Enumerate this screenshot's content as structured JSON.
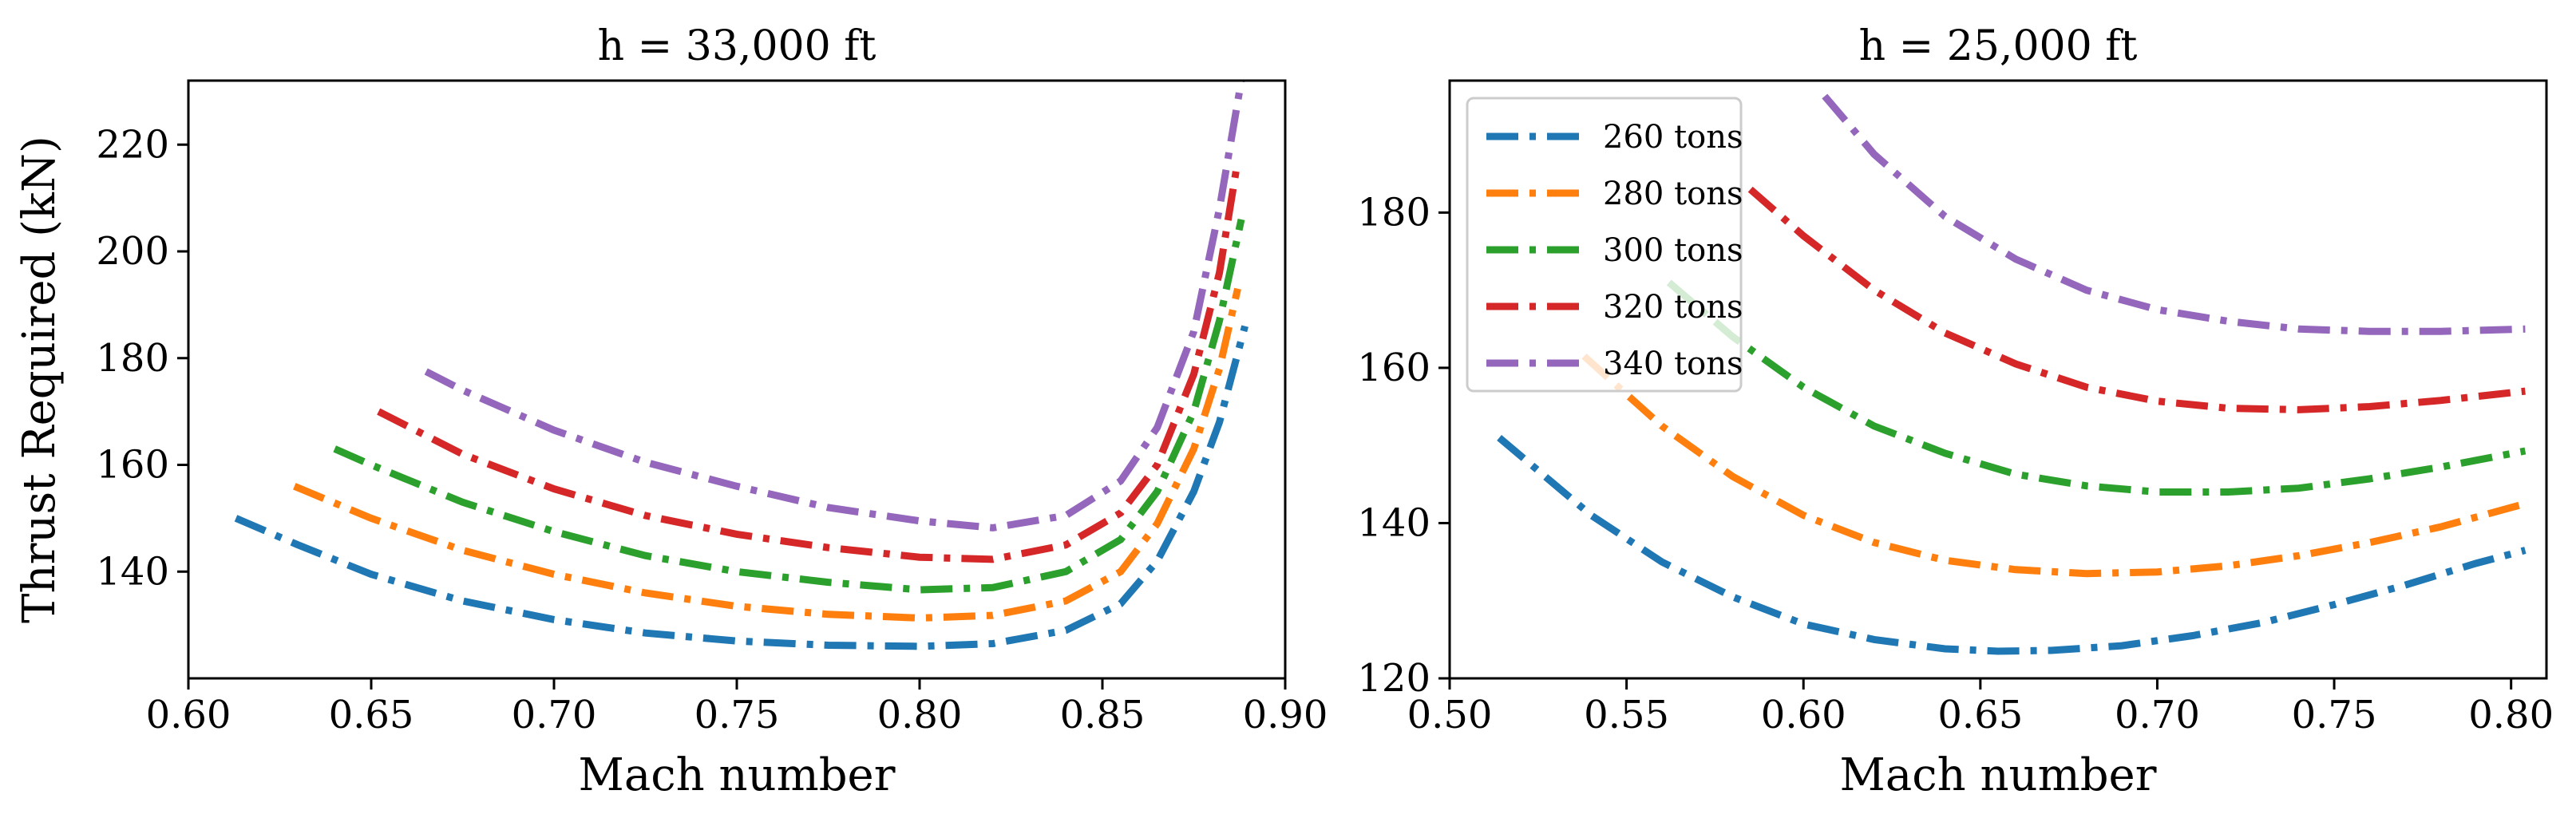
{
  "chart_data": [
    {
      "type": "line",
      "title": "h = 33,000 ft",
      "xlabel": "Mach number",
      "ylabel": "Thrust Required (kN)",
      "xlim": [
        0.6,
        0.9
      ],
      "ylim": [
        120,
        232
      ],
      "xticks": [
        0.6,
        0.65,
        0.7,
        0.75,
        0.8,
        0.85,
        0.9
      ],
      "xtick_labels": [
        "0.60",
        "0.65",
        "0.70",
        "0.75",
        "0.80",
        "0.85",
        "0.90"
      ],
      "yticks": [
        140,
        160,
        180,
        200,
        220
      ],
      "ytick_labels": [
        "140",
        "160",
        "180",
        "200",
        "220"
      ],
      "legend": null,
      "series": [
        {
          "name": "260 tons",
          "color": "#1f77b4",
          "x": [
            0.613,
            0.63,
            0.65,
            0.675,
            0.7,
            0.725,
            0.75,
            0.775,
            0.8,
            0.82,
            0.84,
            0.855,
            0.865,
            0.875,
            0.882,
            0.889
          ],
          "y": [
            150,
            145,
            139.5,
            134.5,
            131,
            128.5,
            127,
            126.2,
            126,
            126.5,
            129,
            134,
            142,
            155,
            168,
            186
          ]
        },
        {
          "name": "280 tons",
          "color": "#ff7f0e",
          "x": [
            0.629,
            0.65,
            0.675,
            0.7,
            0.725,
            0.75,
            0.775,
            0.8,
            0.82,
            0.84,
            0.855,
            0.865,
            0.875,
            0.882,
            0.887
          ],
          "y": [
            156,
            150,
            144,
            139.5,
            136,
            133.5,
            132,
            131.3,
            131.8,
            134.5,
            140,
            149,
            163,
            178,
            193
          ]
        },
        {
          "name": "300 tons",
          "color": "#2ca02c",
          "x": [
            0.64,
            0.65,
            0.675,
            0.7,
            0.725,
            0.75,
            0.775,
            0.8,
            0.82,
            0.84,
            0.855,
            0.865,
            0.875,
            0.882,
            0.888
          ],
          "y": [
            163,
            160,
            153,
            147.5,
            143,
            140,
            138,
            136.6,
            137,
            140,
            146,
            155,
            170,
            187,
            206
          ]
        },
        {
          "name": "320 tons",
          "color": "#d62728",
          "x": [
            0.652,
            0.675,
            0.7,
            0.725,
            0.75,
            0.775,
            0.8,
            0.82,
            0.84,
            0.855,
            0.865,
            0.875,
            0.882,
            0.887
          ],
          "y": [
            170,
            162,
            155.5,
            150.5,
            147,
            144.5,
            142.7,
            142.3,
            145,
            151,
            160,
            177,
            196,
            217
          ]
        },
        {
          "name": "340 tons",
          "color": "#9467bd",
          "x": [
            0.665,
            0.675,
            0.7,
            0.725,
            0.75,
            0.775,
            0.8,
            0.82,
            0.84,
            0.855,
            0.865,
            0.875,
            0.882,
            0.888
          ],
          "y": [
            177.5,
            174,
            166.5,
            160.5,
            156,
            152,
            149.5,
            148.2,
            150.5,
            157,
            167,
            185,
            208,
            232
          ]
        }
      ]
    },
    {
      "type": "line",
      "title": "h = 25,000 ft",
      "xlabel": "Mach number",
      "ylabel": "",
      "xlim": [
        0.5,
        0.81
      ],
      "ylim": [
        120,
        197
      ],
      "xticks": [
        0.5,
        0.55,
        0.6,
        0.65,
        0.7,
        0.75,
        0.8
      ],
      "xtick_labels": [
        "0.50",
        "0.55",
        "0.60",
        "0.65",
        "0.70",
        "0.75",
        "0.80"
      ],
      "yticks": [
        120,
        140,
        160,
        180
      ],
      "ytick_labels": [
        "120",
        "140",
        "160",
        "180"
      ],
      "legend": "top-left",
      "series": [
        {
          "name": "260 tons",
          "color": "#1f77b4",
          "x": [
            0.514,
            0.54,
            0.56,
            0.58,
            0.6,
            0.62,
            0.64,
            0.655,
            0.67,
            0.69,
            0.71,
            0.73,
            0.75,
            0.77,
            0.79,
            0.804
          ],
          "y": [
            151,
            141,
            135,
            130.5,
            127,
            125,
            123.8,
            123.5,
            123.6,
            124.2,
            125.5,
            127.2,
            129.5,
            132,
            134.8,
            136.5
          ]
        },
        {
          "name": "280 tons",
          "color": "#ff7f0e",
          "x": [
            0.538,
            0.56,
            0.58,
            0.6,
            0.62,
            0.64,
            0.66,
            0.68,
            0.7,
            0.72,
            0.74,
            0.76,
            0.78,
            0.804
          ],
          "y": [
            161.5,
            152.5,
            146,
            141,
            137.5,
            135.2,
            134,
            133.5,
            133.7,
            134.5,
            135.8,
            137.5,
            139.5,
            142.5
          ]
        },
        {
          "name": "300 tons",
          "color": "#2ca02c",
          "x": [
            0.562,
            0.58,
            0.6,
            0.62,
            0.64,
            0.66,
            0.68,
            0.7,
            0.72,
            0.74,
            0.76,
            0.78,
            0.804
          ],
          "y": [
            171,
            164,
            157.5,
            152.5,
            149,
            146.3,
            144.8,
            144,
            144,
            144.5,
            145.7,
            147.2,
            149.3
          ]
        },
        {
          "name": "320 tons",
          "color": "#d62728",
          "x": [
            0.585,
            0.6,
            0.62,
            0.64,
            0.66,
            0.68,
            0.7,
            0.72,
            0.74,
            0.76,
            0.78,
            0.804
          ],
          "y": [
            183,
            177,
            170,
            164.5,
            160.5,
            157.5,
            155.7,
            154.8,
            154.6,
            155,
            155.8,
            157
          ]
        },
        {
          "name": "340 tons",
          "color": "#9467bd",
          "x": [
            0.606,
            0.62,
            0.64,
            0.66,
            0.68,
            0.7,
            0.72,
            0.74,
            0.76,
            0.78,
            0.804
          ],
          "y": [
            195,
            187.5,
            179.5,
            174,
            170,
            167.5,
            166,
            165,
            164.7,
            164.7,
            165
          ]
        }
      ]
    }
  ]
}
